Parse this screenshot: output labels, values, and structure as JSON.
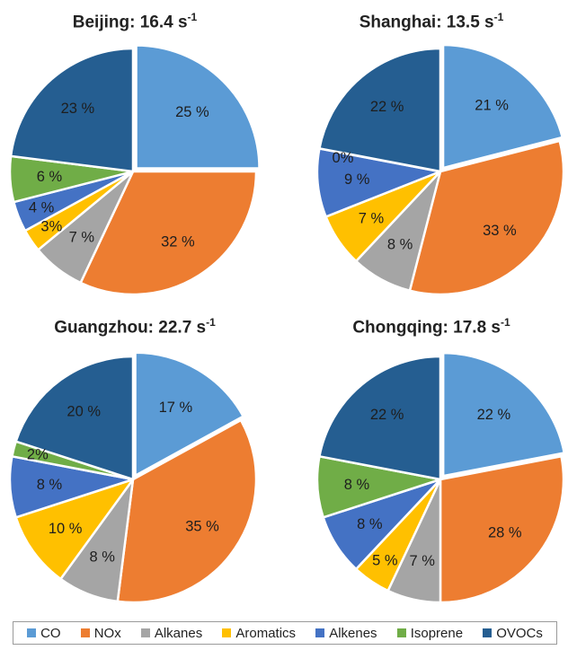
{
  "chart_data": [
    {
      "type": "pie",
      "title_text": "Beijing: 16.4 s",
      "title_sup": "-1",
      "categories": [
        "CO",
        "NOx",
        "Alkanes",
        "Aromatics",
        "Alkenes",
        "Isoprene",
        "OVOCs"
      ],
      "values": [
        25,
        32,
        7,
        3,
        4,
        6,
        23
      ],
      "labels": [
        "25 %",
        "32 %",
        "7 %",
        "3%",
        "4 %",
        "6 %",
        "23 %"
      ]
    },
    {
      "type": "pie",
      "title_text": "Shanghai: 13.5 s",
      "title_sup": "-1",
      "categories": [
        "CO",
        "NOx",
        "Alkanes",
        "Aromatics",
        "Alkenes",
        "Isoprene",
        "OVOCs"
      ],
      "values": [
        21,
        33,
        8,
        7,
        9,
        0,
        22
      ],
      "labels": [
        "21 %",
        "33 %",
        "8 %",
        "7 %",
        "9 %",
        "0%",
        "22 %"
      ]
    },
    {
      "type": "pie",
      "title_text": "Guangzhou: 22.7 s",
      "title_sup": "-1",
      "categories": [
        "CO",
        "NOx",
        "Alkanes",
        "Aromatics",
        "Alkenes",
        "Isoprene",
        "OVOCs"
      ],
      "values": [
        17,
        35,
        8,
        10,
        8,
        2,
        20
      ],
      "labels": [
        "17 %",
        "35 %",
        "8 %",
        "10 %",
        "8 %",
        "2%",
        "20 %"
      ]
    },
    {
      "type": "pie",
      "title_text": "Chongqing: 17.8 s",
      "title_sup": "-1",
      "categories": [
        "CO",
        "NOx",
        "Alkanes",
        "Aromatics",
        "Alkenes",
        "Isoprene",
        "OVOCs"
      ],
      "values": [
        22,
        28,
        7,
        5,
        8,
        8,
        22
      ],
      "labels": [
        "22 %",
        "28 %",
        "7 %",
        "5 %",
        "8 %",
        "8 %",
        "22 %"
      ]
    }
  ],
  "legend": {
    "placement": "bottom",
    "items": [
      {
        "label": "CO",
        "color": "#5b9bd5"
      },
      {
        "label": "NOx",
        "color": "#ed7d31"
      },
      {
        "label": "Alkanes",
        "color": "#a5a5a5"
      },
      {
        "label": "Aromatics",
        "color": "#ffc000"
      },
      {
        "label": "Alkenes",
        "color": "#4472c4"
      },
      {
        "label": "Isoprene",
        "color": "#70ad47"
      },
      {
        "label": "OVOCs",
        "color": "#255e91"
      }
    ]
  }
}
